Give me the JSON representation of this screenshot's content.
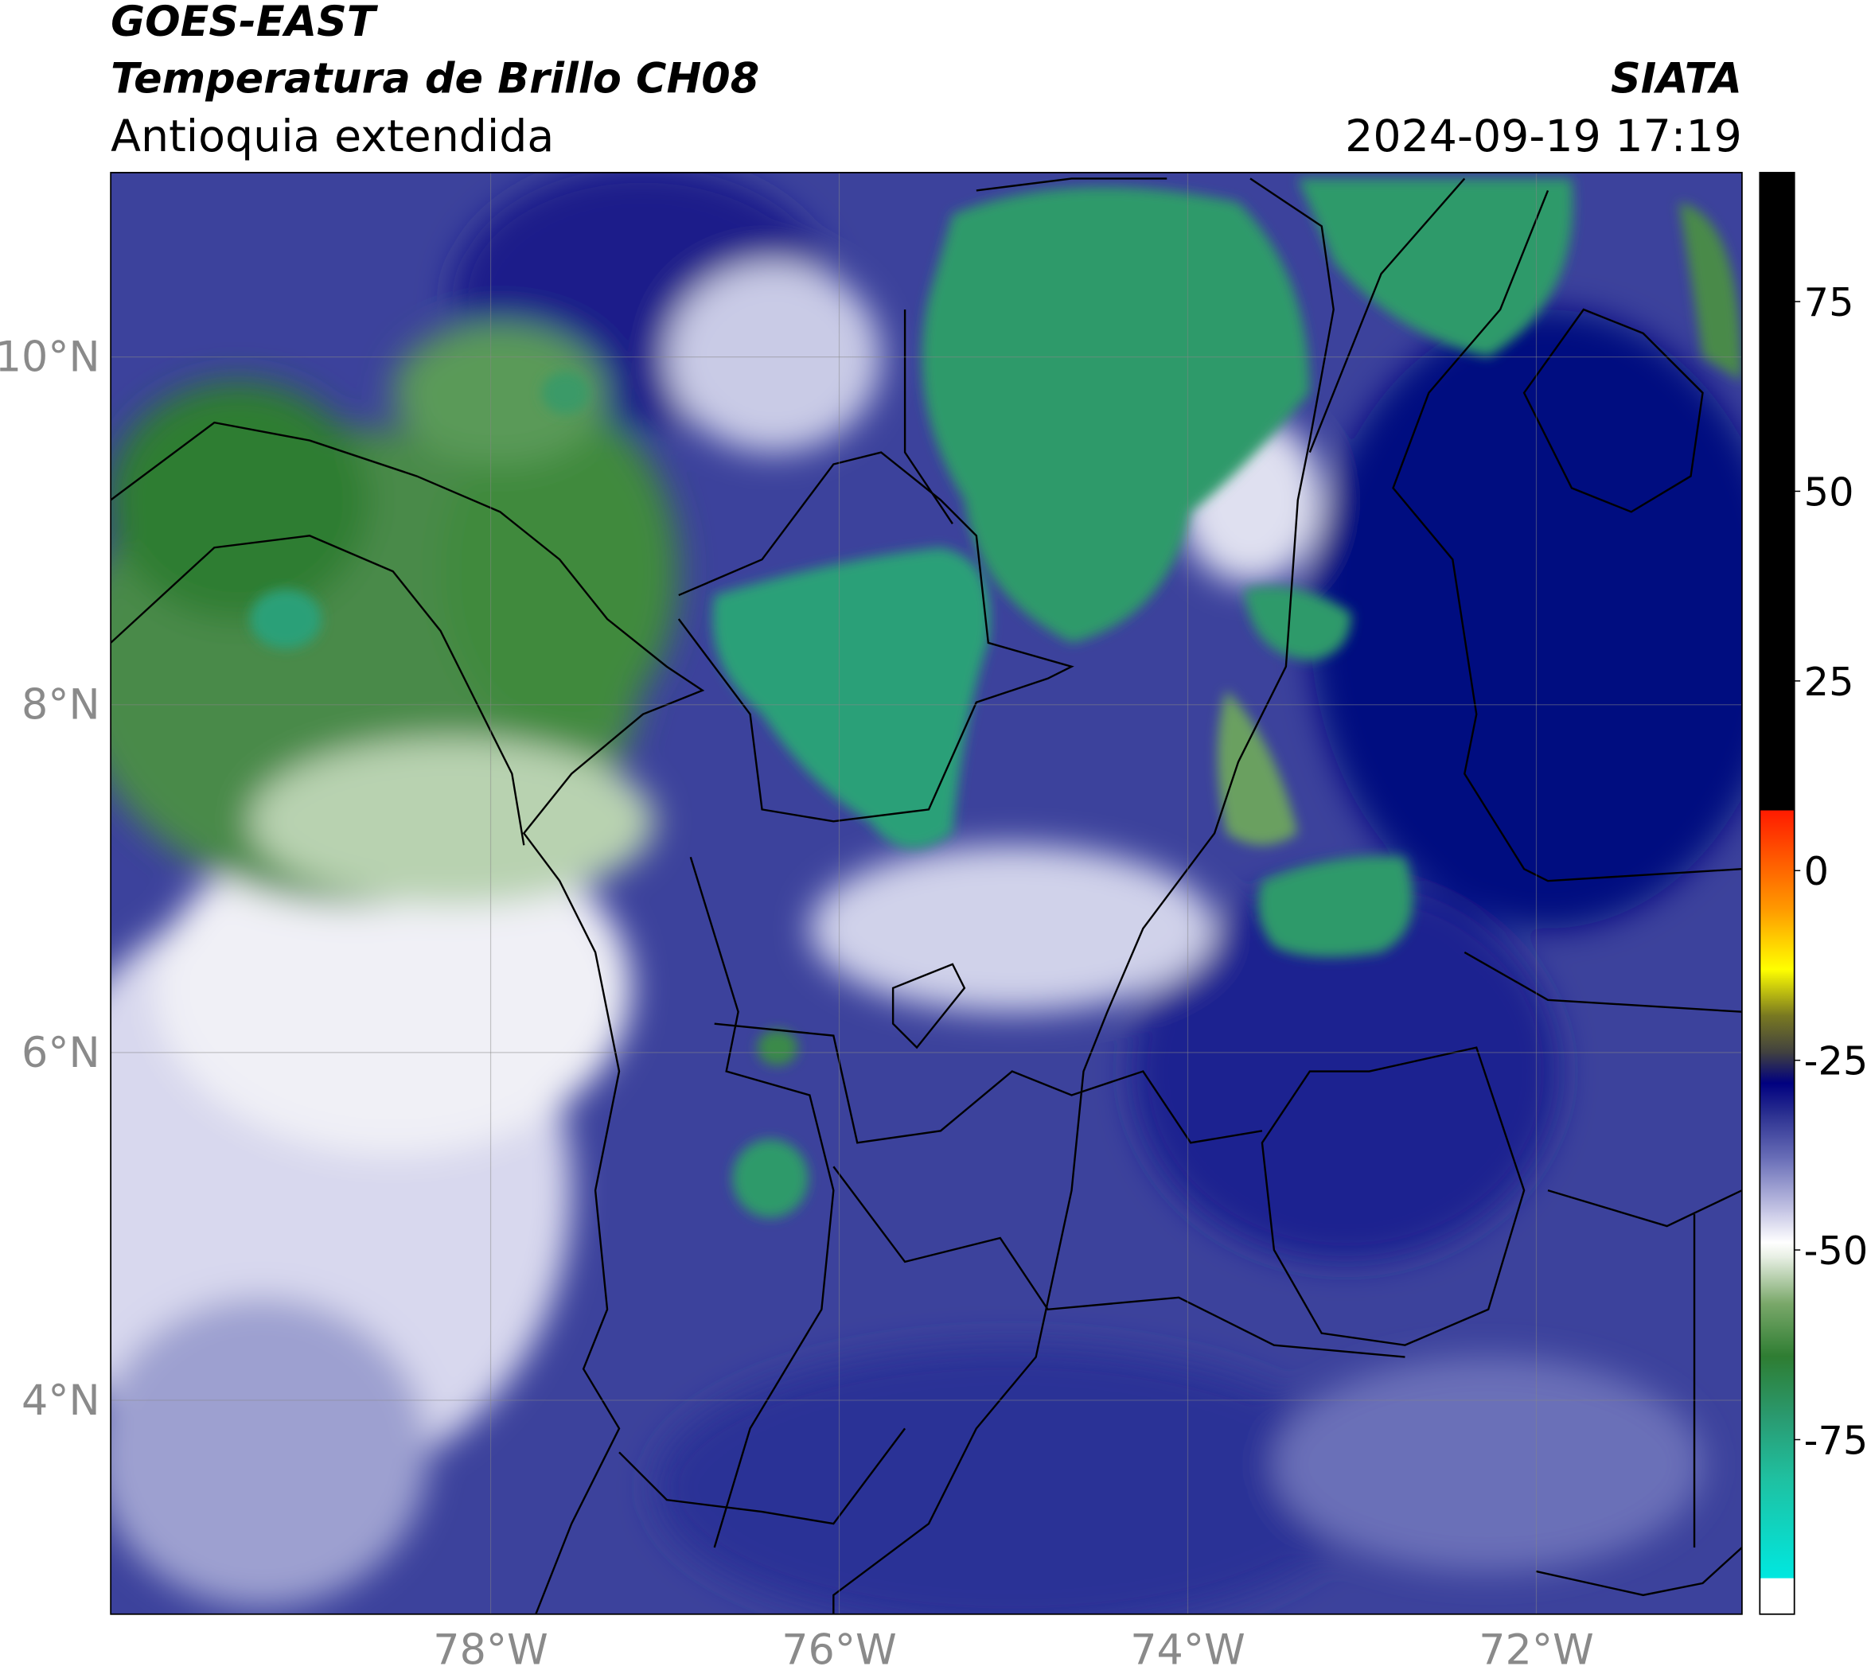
{
  "header": {
    "title": "GOES-EAST",
    "subtitle": "Temperatura de Brillo CH08",
    "region": "Antioquia extendida",
    "source": "SIATA",
    "datetime": "2024-09-19 17:19"
  },
  "map": {
    "xlim": [
      -80.18,
      -70.82
    ],
    "ylim": [
      2.77,
      11.06
    ],
    "xticks": [
      {
        "value": -78,
        "label": "78°W"
      },
      {
        "value": -76,
        "label": "76°W"
      },
      {
        "value": -74,
        "label": "74°W"
      },
      {
        "value": -72,
        "label": "72°W"
      }
    ],
    "yticks": [
      {
        "value": 4,
        "label": "4°N"
      },
      {
        "value": 6,
        "label": "6°N"
      },
      {
        "value": 8,
        "label": "8°N"
      },
      {
        "value": 10,
        "label": "10°N"
      }
    ],
    "grid": true
  },
  "colorbar": {
    "clim": [
      -98,
      92
    ],
    "ticks": [
      -75,
      -50,
      -25,
      0,
      25,
      50,
      75
    ],
    "stops": [
      {
        "value": -98,
        "color": "#ffffff"
      },
      {
        "value": -93.2,
        "color": "#ffffff"
      },
      {
        "value": -93.2,
        "color": "#00e8e0"
      },
      {
        "value": -80,
        "color": "#1fc0a0"
      },
      {
        "value": -72,
        "color": "#2a9a70"
      },
      {
        "value": -64,
        "color": "#2e7d32"
      },
      {
        "value": -57,
        "color": "#7aa86a"
      },
      {
        "value": -51,
        "color": "#e6eee2"
      },
      {
        "value": -49,
        "color": "#ffffff"
      },
      {
        "value": -45,
        "color": "#c8c8e6"
      },
      {
        "value": -38,
        "color": "#6a6fb8"
      },
      {
        "value": -32,
        "color": "#2a2f90"
      },
      {
        "value": -28,
        "color": "#000080"
      },
      {
        "value": -24,
        "color": "#404040"
      },
      {
        "value": -19,
        "color": "#7a7a20"
      },
      {
        "value": -13,
        "color": "#ffff00"
      },
      {
        "value": -5,
        "color": "#ff9900"
      },
      {
        "value": 8,
        "color": "#ff1a00"
      },
      {
        "value": 8,
        "color": "#000000"
      },
      {
        "value": 92,
        "color": "#000000"
      }
    ]
  }
}
